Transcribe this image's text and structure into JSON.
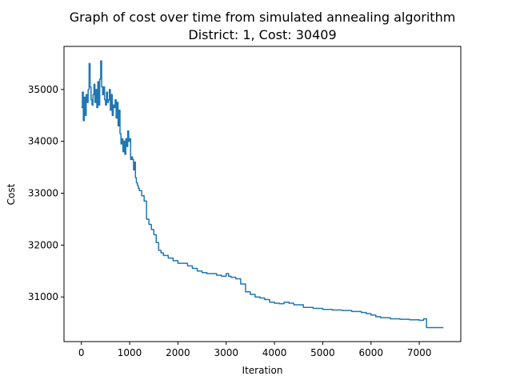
{
  "chart_data": {
    "type": "line",
    "title": "Graph of cost over time from simulated annealing algorithm",
    "subtitle": "District: 1, Cost: 30409",
    "xlabel": "Iteration",
    "ylabel": "Cost",
    "xlim": [
      -360,
      7860
    ],
    "ylim": [
      30140,
      35830
    ],
    "xticks": [
      0,
      1000,
      2000,
      3000,
      4000,
      5000,
      6000,
      7000
    ],
    "yticks": [
      31000,
      32000,
      33000,
      34000,
      35000
    ],
    "grid": false,
    "legend": "none",
    "series": [
      {
        "color": "#1f77b4",
        "x": [
          0,
          20,
          40,
          60,
          80,
          100,
          120,
          140,
          160,
          180,
          200,
          220,
          240,
          260,
          280,
          300,
          320,
          340,
          360,
          380,
          400,
          420,
          440,
          460,
          480,
          500,
          520,
          540,
          560,
          580,
          600,
          620,
          640,
          660,
          680,
          700,
          720,
          740,
          760,
          780,
          800,
          820,
          840,
          860,
          880,
          900,
          920,
          940,
          960,
          980,
          1000,
          1020,
          1040,
          1060,
          1080,
          1100,
          1120,
          1140,
          1160,
          1180,
          1200,
          1250,
          1300,
          1350,
          1400,
          1450,
          1500,
          1550,
          1600,
          1650,
          1700,
          1800,
          1900,
          2000,
          2100,
          2200,
          2300,
          2400,
          2500,
          2600,
          2700,
          2800,
          2900,
          3000,
          3050,
          3100,
          3200,
          3300,
          3400,
          3500,
          3600,
          3700,
          3800,
          3900,
          4000,
          4100,
          4200,
          4300,
          4400,
          4600,
          4800,
          5000,
          5200,
          5400,
          5600,
          5800,
          5900,
          6000,
          6100,
          6200,
          6400,
          6600,
          6800,
          7000,
          7090,
          7150,
          7500
        ],
        "y": [
          34650,
          34950,
          34400,
          34850,
          34500,
          34900,
          34750,
          35000,
          35500,
          35050,
          34800,
          34700,
          34900,
          35100,
          34750,
          35000,
          34650,
          35150,
          34700,
          35200,
          35550,
          35050,
          34900,
          35050,
          34800,
          34700,
          34950,
          34750,
          34800,
          35000,
          34600,
          34900,
          34500,
          34700,
          34650,
          34800,
          34450,
          34750,
          34300,
          34600,
          34150,
          33950,
          34050,
          33800,
          34000,
          33750,
          34050,
          33900,
          34200,
          34000,
          34050,
          33650,
          33700,
          33650,
          33450,
          33600,
          33300,
          33200,
          33150,
          33100,
          33050,
          32950,
          32850,
          32500,
          32400,
          32300,
          32200,
          32050,
          31900,
          31850,
          31800,
          31750,
          31700,
          31650,
          31650,
          31600,
          31550,
          31500,
          31470,
          31450,
          31450,
          31420,
          31400,
          31450,
          31400,
          31380,
          31350,
          31250,
          31100,
          31050,
          31000,
          30980,
          30950,
          30900,
          30880,
          30870,
          30900,
          30880,
          30850,
          30800,
          30780,
          30760,
          30750,
          30740,
          30720,
          30700,
          30680,
          30650,
          30620,
          30600,
          30580,
          30570,
          30560,
          30550,
          30580,
          30409,
          30409
        ]
      }
    ]
  }
}
